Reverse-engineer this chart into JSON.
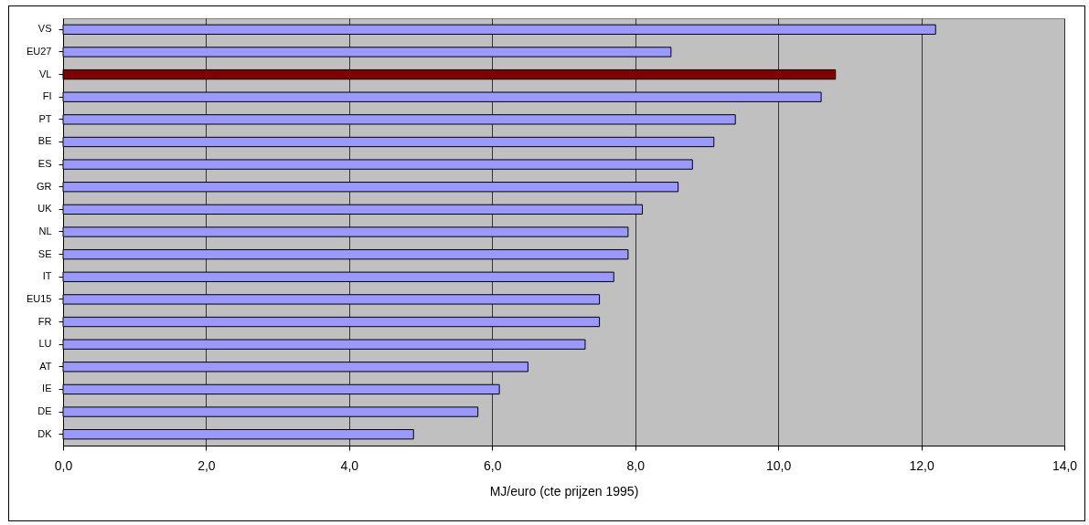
{
  "chart_data": {
    "type": "bar",
    "orientation": "horizontal",
    "xlabel": "MJ/euro (cte prijzen 1995)",
    "categories": [
      "VS",
      "EU27",
      "VL",
      "FI",
      "PT",
      "BE",
      "ES",
      "GR",
      "UK",
      "NL",
      "SE",
      "IT",
      "EU15",
      "FR",
      "LU",
      "AT",
      "IE",
      "DE",
      "DK"
    ],
    "values": [
      12.2,
      8.5,
      10.8,
      10.6,
      9.4,
      9.1,
      8.8,
      8.6,
      8.1,
      7.9,
      7.9,
      7.7,
      7.5,
      7.5,
      7.3,
      6.5,
      6.1,
      5.8,
      4.9
    ],
    "colors": [
      "#9999ff",
      "#9999ff",
      "#800000",
      "#9999ff",
      "#9999ff",
      "#9999ff",
      "#9999ff",
      "#9999ff",
      "#9999ff",
      "#9999ff",
      "#9999ff",
      "#9999ff",
      "#9999ff",
      "#9999ff",
      "#9999ff",
      "#9999ff",
      "#9999ff",
      "#9999ff",
      "#9999ff"
    ],
    "xlim": [
      0,
      14
    ],
    "xticks": [
      {
        "value": 0,
        "label": "0,0"
      },
      {
        "value": 2,
        "label": "2,0"
      },
      {
        "value": 4,
        "label": "4,0"
      },
      {
        "value": 6,
        "label": "6,0"
      },
      {
        "value": 8,
        "label": "8,0"
      },
      {
        "value": 10,
        "label": "10,0"
      },
      {
        "value": 12,
        "label": "12,0"
      },
      {
        "value": 14,
        "label": "14,0"
      }
    ],
    "grid": "x"
  }
}
